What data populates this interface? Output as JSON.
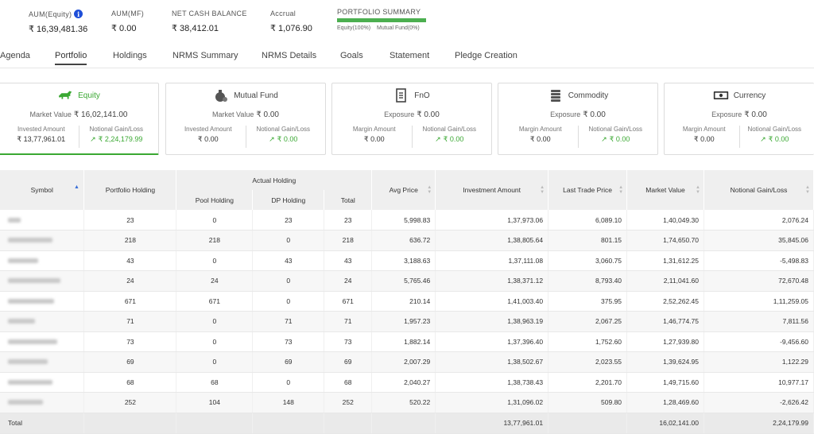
{
  "summary": {
    "aum_equity": {
      "label": "AUM(Equity)",
      "value": "₹ 16,39,481.36"
    },
    "aum_mf": {
      "label": "AUM(MF)",
      "value": "₹ 0.00"
    },
    "net_cash": {
      "label": "NET CASH BALANCE",
      "value": "₹ 38,412.01"
    },
    "accrual": {
      "label": "Accrual",
      "value": "₹ 1,076.90"
    },
    "portfolio_summary": {
      "label": "PORTFOLIO SUMMARY",
      "equity": "Equity(100%)",
      "mf": "Mutual Fund(0%)",
      "equity_fraction": 1.0
    }
  },
  "nav": {
    "tabs": [
      "Agenda",
      "Portfolio",
      "Holdings",
      "NRMS Summary",
      "NRMS Details",
      "Goals",
      "Statement",
      "Pledge Creation"
    ],
    "active": "Portfolio"
  },
  "cards": [
    {
      "title": "Equity",
      "icon": "bull-icon",
      "main_label": "Market Value",
      "main_value": "₹ 16,02,141.00",
      "left_label": "Invested Amount",
      "left_value": "₹ 13,77,961.01",
      "right_label": "Notional Gain/Loss",
      "right_value": "₹ 2,24,179.99"
    },
    {
      "title": "Mutual Fund",
      "icon": "money-bag-icon",
      "main_label": "Market Value",
      "main_value": "₹ 0.00",
      "left_label": "Invested Amount",
      "left_value": "₹ 0.00",
      "right_label": "Notional Gain/Loss",
      "right_value": "₹ 0.00"
    },
    {
      "title": "FnO",
      "icon": "document-icon",
      "main_label": "Exposure",
      "main_value": "₹ 0.00",
      "left_label": "Margin Amount",
      "left_value": "₹ 0.00",
      "right_label": "Notional Gain/Loss",
      "right_value": "₹ 0.00"
    },
    {
      "title": "Commodity",
      "icon": "coin-stack-icon",
      "main_label": "Exposure",
      "main_value": "₹ 0.00",
      "left_label": "Margin Amount",
      "left_value": "₹ 0.00",
      "right_label": "Notional Gain/Loss",
      "right_value": "₹ 0.00"
    },
    {
      "title": "Currency",
      "icon": "banknote-icon",
      "main_label": "Exposure",
      "main_value": "₹ 0.00",
      "left_label": "Margin Amount",
      "left_value": "₹ 0.00",
      "right_label": "Notional Gain/Loss",
      "right_value": "₹ 0.00"
    }
  ],
  "table": {
    "headers": {
      "symbol": "Symbol",
      "portfolio_holding": "Portfolio Holding",
      "actual_holding": "Actual Holding",
      "pool_holding": "Pool Holding",
      "dp_holding": "DP Holding",
      "total": "Total",
      "avg_price": "Avg Price",
      "investment_amount": "Investment Amount",
      "ltp": "Last Trade Price",
      "market_value": "Market Value",
      "gain_loss": "Notional Gain/Loss"
    },
    "rows": [
      [
        "",
        "23",
        "0",
        "23",
        "23",
        "5,998.83",
        "1,37,973.06",
        "6,089.10",
        "1,40,049.30",
        "2,076.24"
      ],
      [
        "",
        "218",
        "218",
        "0",
        "218",
        "636.72",
        "1,38,805.64",
        "801.15",
        "1,74,650.70",
        "35,845.06"
      ],
      [
        "",
        "43",
        "0",
        "43",
        "43",
        "3,188.63",
        "1,37,111.08",
        "3,060.75",
        "1,31,612.25",
        "-5,498.83"
      ],
      [
        "",
        "24",
        "24",
        "0",
        "24",
        "5,765.46",
        "1,38,371.12",
        "8,793.40",
        "2,11,041.60",
        "72,670.48"
      ],
      [
        "",
        "671",
        "671",
        "0",
        "671",
        "210.14",
        "1,41,003.40",
        "375.95",
        "2,52,262.45",
        "1,11,259.05"
      ],
      [
        "",
        "71",
        "0",
        "71",
        "71",
        "1,957.23",
        "1,38,963.19",
        "2,067.25",
        "1,46,774.75",
        "7,811.56"
      ],
      [
        "",
        "73",
        "0",
        "73",
        "73",
        "1,882.14",
        "1,37,396.40",
        "1,752.60",
        "1,27,939.80",
        "-9,456.60"
      ],
      [
        "",
        "69",
        "0",
        "69",
        "69",
        "2,007.29",
        "1,38,502.67",
        "2,023.55",
        "1,39,624.95",
        "1,122.29"
      ],
      [
        "",
        "68",
        "68",
        "0",
        "68",
        "2,040.27",
        "1,38,738.43",
        "2,201.70",
        "1,49,715.60",
        "10,977.17"
      ],
      [
        "",
        "252",
        "104",
        "148",
        "252",
        "520.22",
        "1,31,096.02",
        "509.80",
        "1,28,469.60",
        "-2,626.42"
      ]
    ],
    "total": {
      "label": "Total",
      "investment_amount": "13,77,961.01",
      "market_value": "16,02,141.00",
      "gain_loss": "2,24,179.99"
    }
  }
}
